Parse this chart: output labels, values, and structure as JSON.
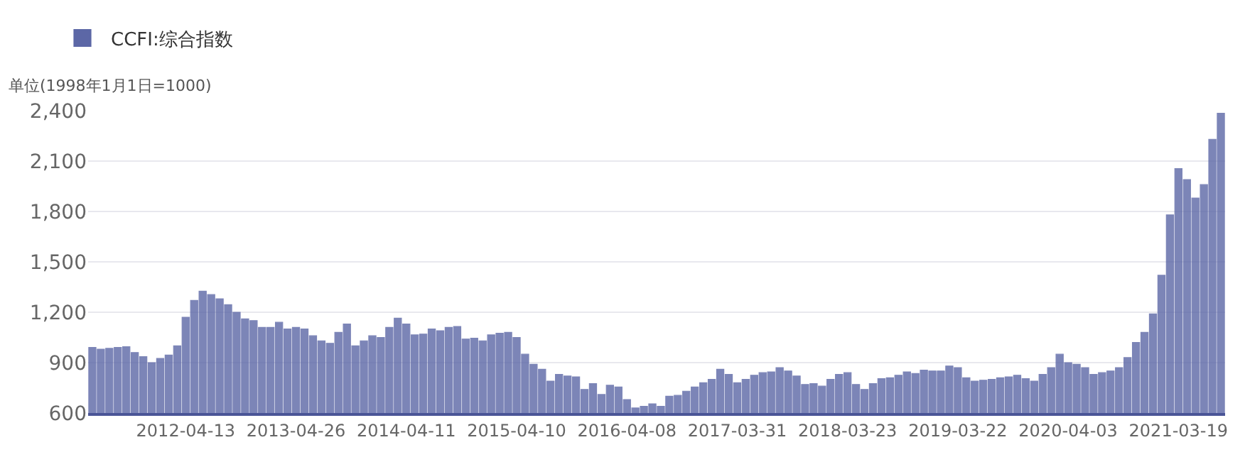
{
  "chart_data": {
    "type": "bar",
    "ylabel": "单位(1998年1月1日=1000)",
    "categories": [
      null,
      null,
      null,
      null,
      null,
      null,
      null,
      null,
      null,
      null,
      null,
      "2012-04-13",
      null,
      null,
      null,
      null,
      null,
      null,
      null,
      null,
      null,
      null,
      null,
      null,
      "2013-04-26",
      null,
      null,
      null,
      null,
      null,
      null,
      null,
      null,
      null,
      null,
      null,
      null,
      "2014-04-11",
      null,
      null,
      null,
      null,
      null,
      null,
      null,
      null,
      null,
      null,
      null,
      null,
      "2015-04-10",
      null,
      null,
      null,
      null,
      null,
      null,
      null,
      null,
      null,
      null,
      null,
      null,
      "2016-04-08",
      null,
      null,
      null,
      null,
      null,
      null,
      null,
      null,
      null,
      null,
      null,
      null,
      "2017-03-31",
      null,
      null,
      null,
      null,
      null,
      null,
      null,
      null,
      null,
      null,
      null,
      null,
      "2018-03-23",
      null,
      null,
      null,
      null,
      null,
      null,
      null,
      null,
      null,
      null,
      null,
      null,
      "2019-03-22",
      null,
      null,
      null,
      null,
      null,
      null,
      null,
      null,
      null,
      null,
      null,
      null,
      "2020-04-03",
      null,
      null,
      null,
      null,
      null,
      null,
      null,
      null,
      null,
      null,
      null,
      null,
      "2021-03-19",
      null,
      null,
      null,
      null,
      null
    ],
    "series": [
      {
        "name": "CCFI:综合指数",
        "color": "#5c67a6",
        "values": [
          990,
          980,
          985,
          990,
          995,
          960,
          935,
          900,
          925,
          945,
          1000,
          1170,
          1270,
          1325,
          1305,
          1280,
          1245,
          1200,
          1160,
          1150,
          1110,
          1110,
          1140,
          1100,
          1110,
          1100,
          1060,
          1030,
          1015,
          1080,
          1130,
          1000,
          1030,
          1060,
          1050,
          1110,
          1165,
          1130,
          1065,
          1070,
          1100,
          1090,
          1110,
          1115,
          1040,
          1045,
          1030,
          1065,
          1075,
          1080,
          1050,
          950,
          890,
          860,
          790,
          830,
          820,
          815,
          740,
          775,
          710,
          765,
          755,
          680,
          630,
          640,
          655,
          640,
          700,
          705,
          730,
          755,
          780,
          800,
          860,
          830,
          780,
          800,
          825,
          840,
          845,
          870,
          850,
          820,
          770,
          775,
          760,
          800,
          830,
          840,
          770,
          740,
          775,
          805,
          810,
          825,
          845,
          835,
          855,
          850,
          850,
          880,
          870,
          810,
          790,
          795,
          800,
          810,
          815,
          825,
          805,
          790,
          830,
          870,
          950,
          900,
          890,
          870,
          830,
          840,
          850,
          870,
          930,
          1020,
          1080,
          1190,
          1420,
          1780,
          2055,
          1990,
          1880,
          1960,
          2230,
          2385
        ]
      }
    ],
    "ylim": [
      600,
      2400
    ],
    "yticks": [
      {
        "value": 600,
        "label": "600"
      },
      {
        "value": 900,
        "label": "900"
      },
      {
        "value": 1200,
        "label": "1,200"
      },
      {
        "value": 1500,
        "label": "1,500"
      },
      {
        "value": 1800,
        "label": "1,800"
      },
      {
        "value": 2100,
        "label": "2,100"
      },
      {
        "value": 2400,
        "label": "2,400"
      }
    ],
    "grid": "y",
    "legend": "top left"
  }
}
